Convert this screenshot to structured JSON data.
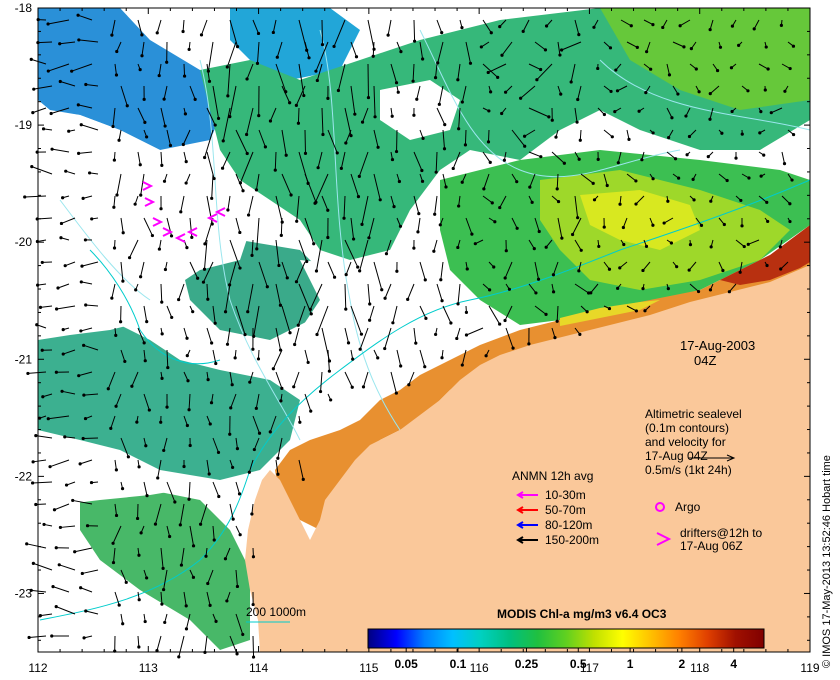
{
  "date": {
    "line1": "17-Aug-2003",
    "line2": "04Z"
  },
  "altimetry": {
    "lines": [
      "Altimetric sealevel",
      "(0.1m contours)",
      "and velocity for",
      "17-Aug 04Z",
      "0.5m/s (1kt 24h)"
    ]
  },
  "anmn_legend": {
    "title": "ANMN 12h avg",
    "items": [
      {
        "label": "10-30m",
        "color": "#ff00ff"
      },
      {
        "label": "50-70m",
        "color": "#ff0000"
      },
      {
        "label": "80-120m",
        "color": "#0000ff"
      },
      {
        "label": "150-200m",
        "color": "#000000"
      }
    ]
  },
  "argo": {
    "label": "Argo",
    "color": "#ff00ff"
  },
  "drifters": {
    "line1": "drifters@12h to",
    "line2": "17-Aug 06Z",
    "color": "#ff00ff"
  },
  "isobath": {
    "label": "200  1000m",
    "color": "#00cccc"
  },
  "colorbar": {
    "title": "MODIS Chl-a mg/m3 v6.4 OC3",
    "ticks": [
      {
        "label": "0.05",
        "value": 0.05
      },
      {
        "label": "0.1",
        "value": 0.1
      },
      {
        "label": "0.25",
        "value": 0.25
      },
      {
        "label": "0.5",
        "value": 0.5
      },
      {
        "label": "1",
        "value": 1
      },
      {
        "label": "2",
        "value": 2
      },
      {
        "label": "4",
        "value": 4
      }
    ],
    "range": [
      0.03,
      6
    ],
    "colors": [
      "#000080",
      "#0000ff",
      "#0080ff",
      "#00c0ff",
      "#00d0c0",
      "#00c080",
      "#20c040",
      "#60d020",
      "#c0e000",
      "#ffff00",
      "#ffc000",
      "#ff8000",
      "#e04000",
      "#a01000",
      "#800000"
    ]
  },
  "credit": "© IMOS 17-May-2013 13:52:46 Hobart time",
  "axes": {
    "x_ticks": [
      {
        "label": "112",
        "value": 112
      },
      {
        "label": "113",
        "value": 113
      },
      {
        "label": "114",
        "value": 114
      },
      {
        "label": "115",
        "value": 115
      },
      {
        "label": "116",
        "value": 116
      },
      {
        "label": "117",
        "value": 117
      },
      {
        "label": "118",
        "value": 118
      },
      {
        "label": "119",
        "value": 119
      }
    ],
    "y_ticks": [
      {
        "label": "-18",
        "value": -18
      },
      {
        "label": "-19",
        "value": -19
      },
      {
        "label": "-20",
        "value": -20
      },
      {
        "label": "-21",
        "value": -21
      },
      {
        "label": "-22",
        "value": -22
      },
      {
        "label": "-23",
        "value": -23
      }
    ],
    "lon_range": [
      112,
      119
    ],
    "lat_range": [
      -23.5,
      -18
    ]
  },
  "colors": {
    "land": "#fac89a",
    "ocean_blue": "#1e9ad8",
    "ocean_teal": "#3cb89a",
    "ocean_green": "#3cc050",
    "ocean_lime": "#8cd820",
    "contour": "#7fe0e8"
  }
}
